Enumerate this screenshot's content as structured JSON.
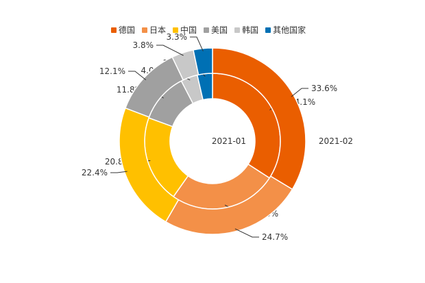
{
  "chart_data": {
    "type": "pie",
    "subtype": "nested-donut",
    "categories": [
      "德国",
      "日本",
      "中国",
      "美国",
      "韩国",
      "其他国家"
    ],
    "colors": [
      "#EA5E00",
      "#F39048",
      "#FFC000",
      "#A0A0A0",
      "#C8C8C8",
      "#0070B4"
    ],
    "series": [
      {
        "name": "2021-01",
        "ring": "inner",
        "values": [
          34.1,
          25.6,
          20.8,
          11.8,
          4.0,
          3.6
        ],
        "labels": [
          "34.1%",
          "25.6%",
          "20.8%",
          "11.8%",
          "4.0%",
          "3.6%"
        ]
      },
      {
        "name": "2021-02",
        "ring": "outer",
        "values": [
          33.6,
          24.7,
          22.4,
          12.1,
          3.8,
          3.3
        ],
        "labels": [
          "33.6%",
          "24.7%",
          "22.4%",
          "12.1%",
          "3.8%",
          "3.3%"
        ]
      }
    ],
    "legend_position": "top"
  }
}
